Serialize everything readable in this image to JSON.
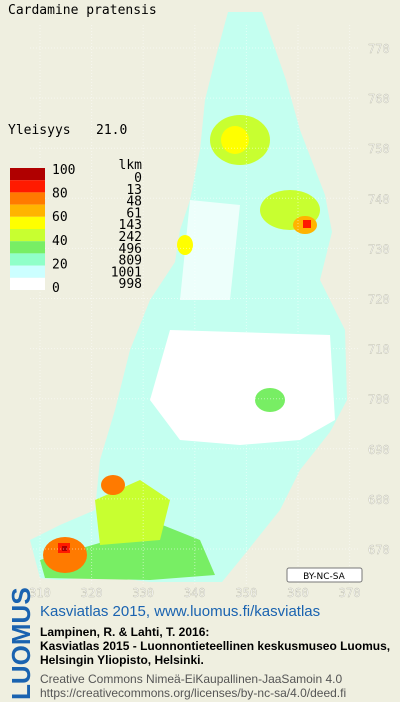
{
  "title": "Cardamine pratensis",
  "frequency": {
    "label": "Yleisyys",
    "value": "21.0"
  },
  "legend": {
    "scale_labels": [
      "100",
      "80",
      "60",
      "40",
      "20",
      "0"
    ],
    "count_header": "lkm",
    "classes": [
      {
        "color": "#b00000",
        "count": "0"
      },
      {
        "color": "#ff1a00",
        "count": "13"
      },
      {
        "color": "#ff7a00",
        "count": "48"
      },
      {
        "color": "#ffb400",
        "count": "61"
      },
      {
        "color": "#ffff00",
        "count": "143"
      },
      {
        "color": "#c8ff30",
        "count": "242"
      },
      {
        "color": "#78ee64",
        "count": "496"
      },
      {
        "color": "#90ffc8",
        "count": "809"
      },
      {
        "color": "#ccffff",
        "count": "1001"
      },
      {
        "color": "#ffffff",
        "count": "998"
      }
    ]
  },
  "grid": {
    "x_ticks": [
      "310",
      "320",
      "330",
      "340",
      "350",
      "360",
      "370"
    ],
    "y_ticks": [
      "770",
      "760",
      "750",
      "740",
      "730",
      "720",
      "710",
      "700",
      "690",
      "680",
      "670"
    ]
  },
  "license_badge": "BY-NC-SA",
  "footer": {
    "logo": "LUOMUS",
    "headline": "Kasviatlas 2015, www.luomus.fi/kasviatlas",
    "citation": [
      "Lampinen, R. & Lahti, T. 2016:",
      "Kasviatlas 2015 - Luonnontieteellinen keskusmuseo Luomus,",
      "Helsingin Yliopisto, Helsinki."
    ],
    "license": [
      "Creative Commons Nimeä-EiKaupallinen-JaaSamoin 4.0",
      "https://creativecommons.org/licenses/by-nc-sa/4.0/deed.fi"
    ]
  }
}
